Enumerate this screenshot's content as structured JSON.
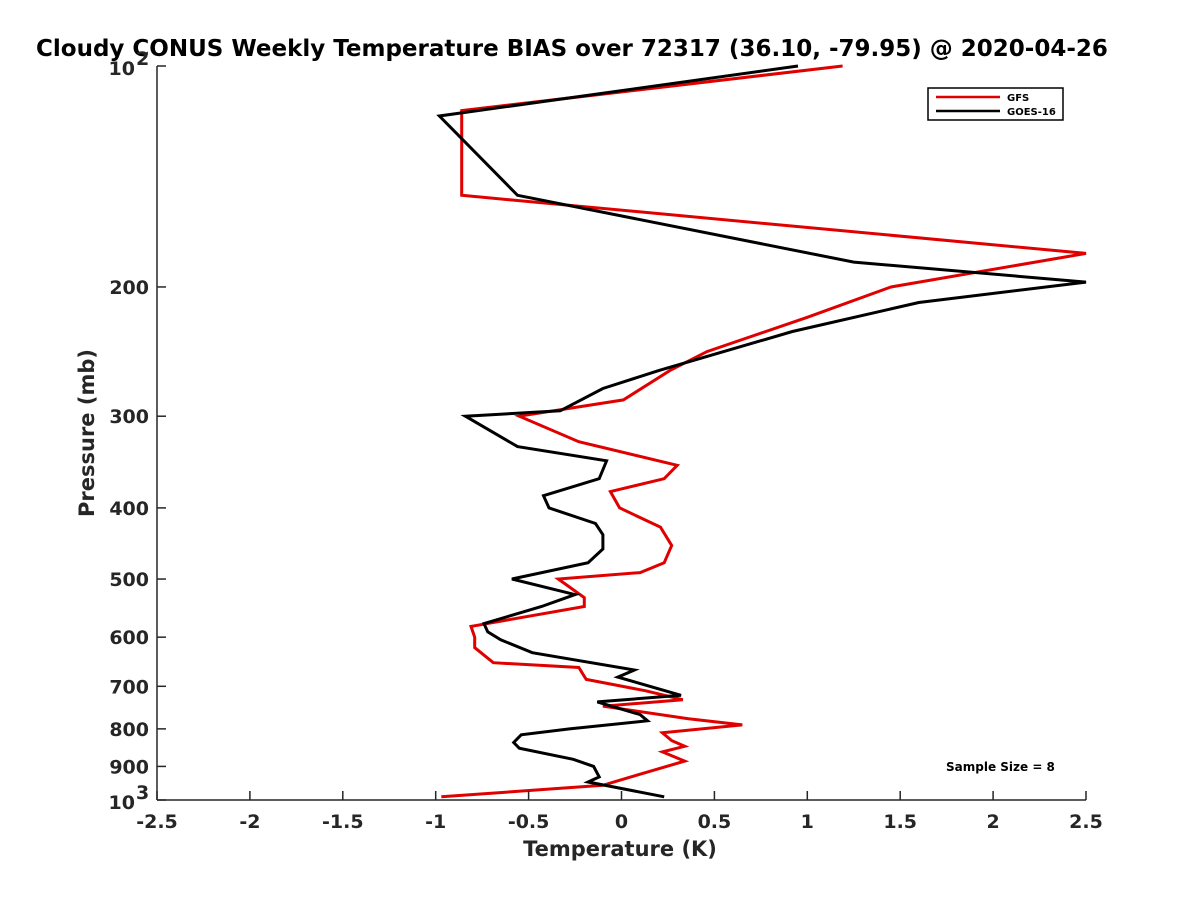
{
  "chart_data": {
    "type": "line",
    "title": "Cloudy CONUS Weekly Temperature BIAS over 72317 (36.10, -79.95) @ 2020-04-26",
    "xlabel": "Temperature (K)",
    "ylabel": "Pressure (mb)",
    "xlim": [
      -2.5,
      2.5
    ],
    "ylim": [
      100,
      1000
    ],
    "y_scale": "log",
    "y_reversed": true,
    "grid": false,
    "legend_position": "top-right",
    "x_ticks": [
      "-2.5",
      "-2",
      "-1.5",
      "-1",
      "-0.5",
      "0",
      "0.5",
      "1",
      "1.5",
      "2",
      "2.5"
    ],
    "y_ticks": [
      {
        "value": 100,
        "label": "10",
        "sup": "2"
      },
      {
        "value": 200,
        "label": "200"
      },
      {
        "value": 300,
        "label": "300"
      },
      {
        "value": 400,
        "label": "400"
      },
      {
        "value": 500,
        "label": "500"
      },
      {
        "value": 600,
        "label": "600"
      },
      {
        "value": 700,
        "label": "700"
      },
      {
        "value": 800,
        "label": "800"
      },
      {
        "value": 900,
        "label": "900"
      },
      {
        "value": 1000,
        "label": "10",
        "sup": "3"
      }
    ],
    "series": [
      {
        "name": "GFS",
        "color": "#e00000",
        "points": [
          [
            1.19,
            100
          ],
          [
            -0.86,
            115
          ],
          [
            -0.86,
            125
          ],
          [
            -0.86,
            150
          ],
          [
            2.5,
            180
          ],
          [
            1.45,
            200
          ],
          [
            1.0,
            220
          ],
          [
            0.46,
            245
          ],
          [
            0.26,
            260
          ],
          [
            0.01,
            285
          ],
          [
            -0.55,
            300
          ],
          [
            -0.23,
            325
          ],
          [
            0.3,
            350
          ],
          [
            0.23,
            365
          ],
          [
            -0.06,
            380
          ],
          [
            -0.01,
            400
          ],
          [
            0.21,
            425
          ],
          [
            0.27,
            450
          ],
          [
            0.23,
            475
          ],
          [
            0.1,
            490
          ],
          [
            -0.34,
            500
          ],
          [
            -0.2,
            530
          ],
          [
            -0.2,
            545
          ],
          [
            -0.81,
            580
          ],
          [
            -0.79,
            600
          ],
          [
            -0.79,
            620
          ],
          [
            -0.69,
            650
          ],
          [
            -0.23,
            660
          ],
          [
            -0.19,
            685
          ],
          [
            0.13,
            710
          ],
          [
            0.33,
            730
          ],
          [
            -0.1,
            745
          ],
          [
            0.36,
            775
          ],
          [
            0.65,
            790
          ],
          [
            0.22,
            810
          ],
          [
            0.27,
            830
          ],
          [
            0.34,
            845
          ],
          [
            0.22,
            860
          ],
          [
            0.34,
            885
          ],
          [
            0.05,
            930
          ],
          [
            -0.1,
            955
          ],
          [
            -0.97,
            990
          ]
        ]
      },
      {
        "name": "GOES-16",
        "color": "#000000",
        "points": [
          [
            0.95,
            100
          ],
          [
            -0.98,
            117
          ],
          [
            -0.56,
            150
          ],
          [
            1.25,
            185
          ],
          [
            2.5,
            197
          ],
          [
            1.6,
            210
          ],
          [
            0.92,
            230
          ],
          [
            0.2,
            260
          ],
          [
            -0.1,
            275
          ],
          [
            -0.33,
            295
          ],
          [
            -0.84,
            300
          ],
          [
            -0.56,
            330
          ],
          [
            -0.08,
            345
          ],
          [
            -0.12,
            365
          ],
          [
            -0.42,
            385
          ],
          [
            -0.39,
            400
          ],
          [
            -0.14,
            420
          ],
          [
            -0.1,
            435
          ],
          [
            -0.1,
            455
          ],
          [
            -0.18,
            475
          ],
          [
            -0.59,
            500
          ],
          [
            -0.25,
            525
          ],
          [
            -0.43,
            545
          ],
          [
            -0.74,
            575
          ],
          [
            -0.72,
            590
          ],
          [
            -0.65,
            605
          ],
          [
            -0.48,
            630
          ],
          [
            0.07,
            665
          ],
          [
            -0.02,
            680
          ],
          [
            0.32,
            720
          ],
          [
            -0.13,
            735
          ],
          [
            0.1,
            765
          ],
          [
            0.14,
            780
          ],
          [
            -0.28,
            800
          ],
          [
            -0.54,
            815
          ],
          [
            -0.58,
            835
          ],
          [
            -0.55,
            850
          ],
          [
            -0.26,
            880
          ],
          [
            -0.15,
            900
          ],
          [
            -0.12,
            930
          ],
          [
            -0.18,
            945
          ],
          [
            0.23,
            990
          ]
        ]
      }
    ],
    "annotations": [
      "Sample Size = 8"
    ]
  }
}
